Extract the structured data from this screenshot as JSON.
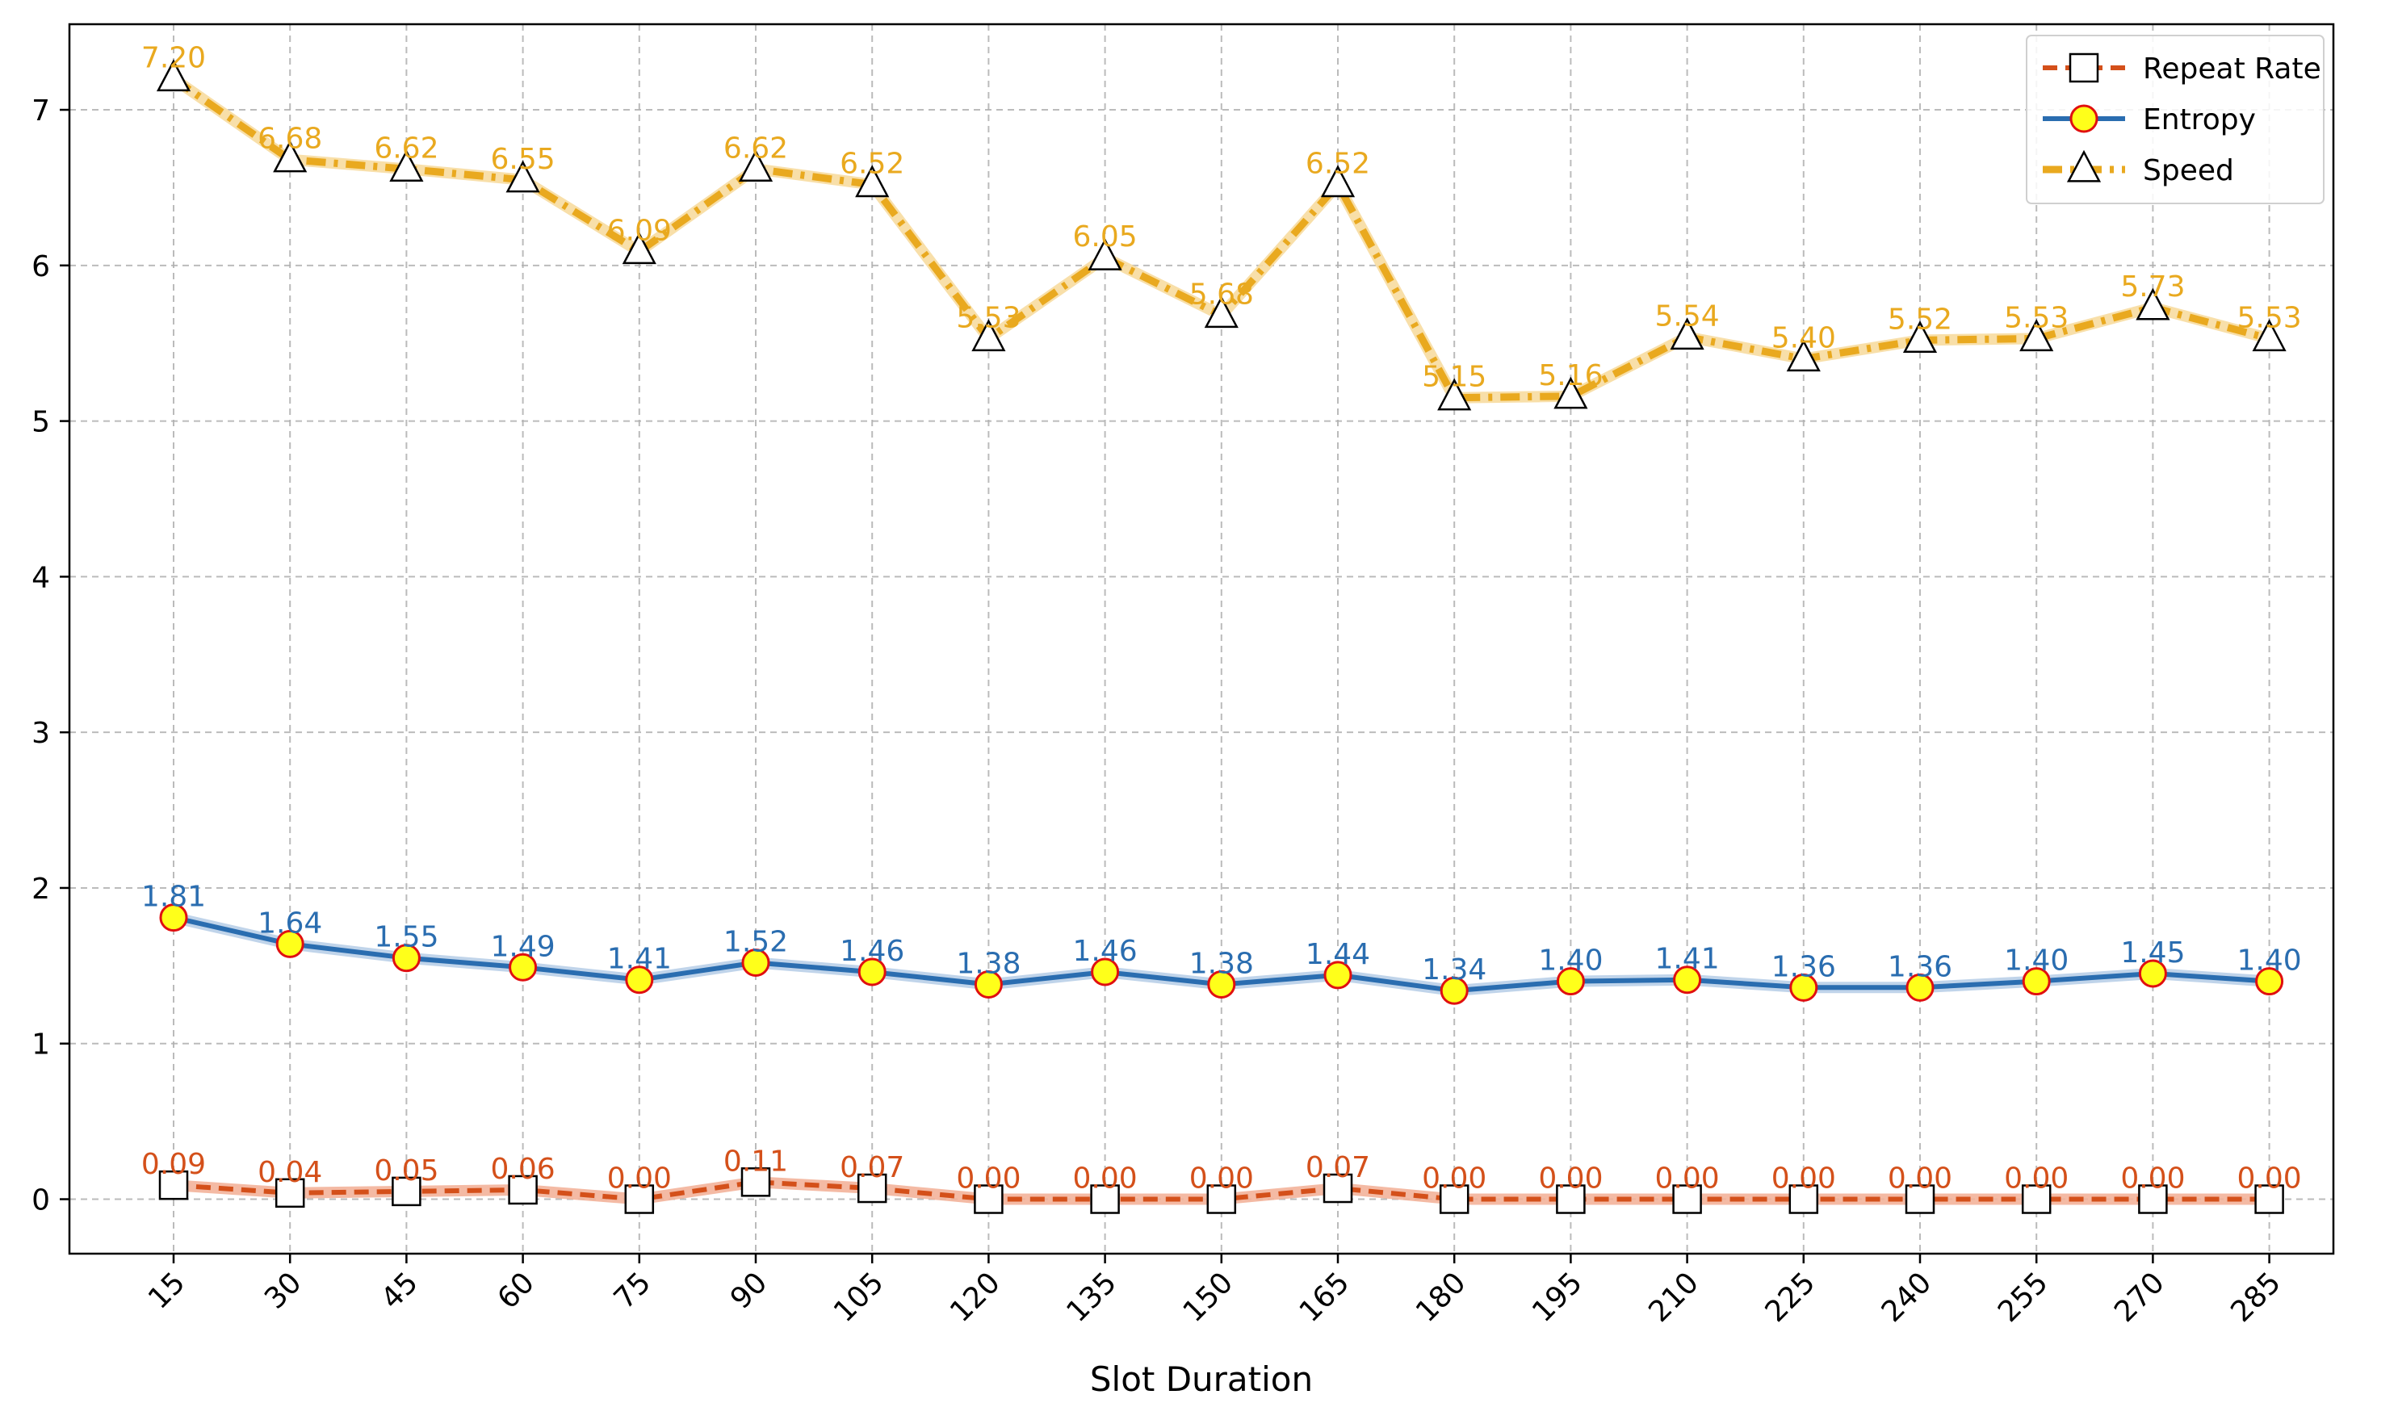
{
  "chart_data": {
    "type": "line",
    "title": "",
    "xlabel": "Slot Duration",
    "ylabel": "",
    "categories": [
      "15",
      "30",
      "45",
      "60",
      "75",
      "90",
      "105",
      "120",
      "135",
      "150",
      "165",
      "180",
      "195",
      "210",
      "225",
      "240",
      "255",
      "270",
      "285"
    ],
    "ylim": [
      -0.35,
      7.55
    ],
    "yticks": [
      0,
      1,
      2,
      3,
      4,
      5,
      6,
      7
    ],
    "grid": true,
    "legend_position": "top-right",
    "series": [
      {
        "name": "Repeat Rate",
        "color": "#d4501a",
        "shade_color": "#f3b39a",
        "line_style": "dashed",
        "marker": "square",
        "values": [
          0.09,
          0.04,
          0.05,
          0.06,
          0.0,
          0.11,
          0.07,
          0.0,
          0.0,
          0.0,
          0.07,
          0.0,
          0.0,
          0.0,
          0.0,
          0.0,
          0.0,
          0.0,
          0.0
        ],
        "labels": [
          "0.09",
          "0.04",
          "0.05",
          "0.06",
          "0.00",
          "0.11",
          "0.07",
          "0.00",
          "0.00",
          "0.00",
          "0.07",
          "0.00",
          "0.00",
          "0.00",
          "0.00",
          "0.00",
          "0.00",
          "0.00",
          "0.00"
        ]
      },
      {
        "name": "Entropy",
        "color": "#2a6db0",
        "shade_color": "#b9cfe8",
        "line_style": "solid",
        "marker": "circle",
        "values": [
          1.81,
          1.64,
          1.55,
          1.49,
          1.41,
          1.52,
          1.46,
          1.38,
          1.46,
          1.38,
          1.44,
          1.34,
          1.4,
          1.41,
          1.36,
          1.36,
          1.4,
          1.45,
          1.4
        ],
        "labels": [
          "1.81",
          "1.64",
          "1.55",
          "1.49",
          "1.41",
          "1.52",
          "1.46",
          "1.38",
          "1.46",
          "1.38",
          "1.44",
          "1.34",
          "1.40",
          "1.41",
          "1.36",
          "1.36",
          "1.40",
          "1.45",
          "1.40"
        ]
      },
      {
        "name": "Speed",
        "color": "#e9a91f",
        "shade_color": "#f7dba0",
        "line_style": "dashdot",
        "marker": "triangle",
        "values": [
          7.2,
          6.68,
          6.62,
          6.55,
          6.09,
          6.62,
          6.52,
          5.53,
          6.05,
          5.68,
          6.52,
          5.15,
          5.16,
          5.54,
          5.4,
          5.52,
          5.53,
          5.73,
          5.53
        ],
        "labels": [
          "7.20",
          "6.68",
          "6.62",
          "6.55",
          "6.09",
          "6.62",
          "6.52",
          "5.53",
          "6.05",
          "5.68",
          "6.52",
          "5.15",
          "5.16",
          "5.54",
          "5.40",
          "5.52",
          "5.53",
          "5.73",
          "5.53"
        ]
      }
    ]
  }
}
